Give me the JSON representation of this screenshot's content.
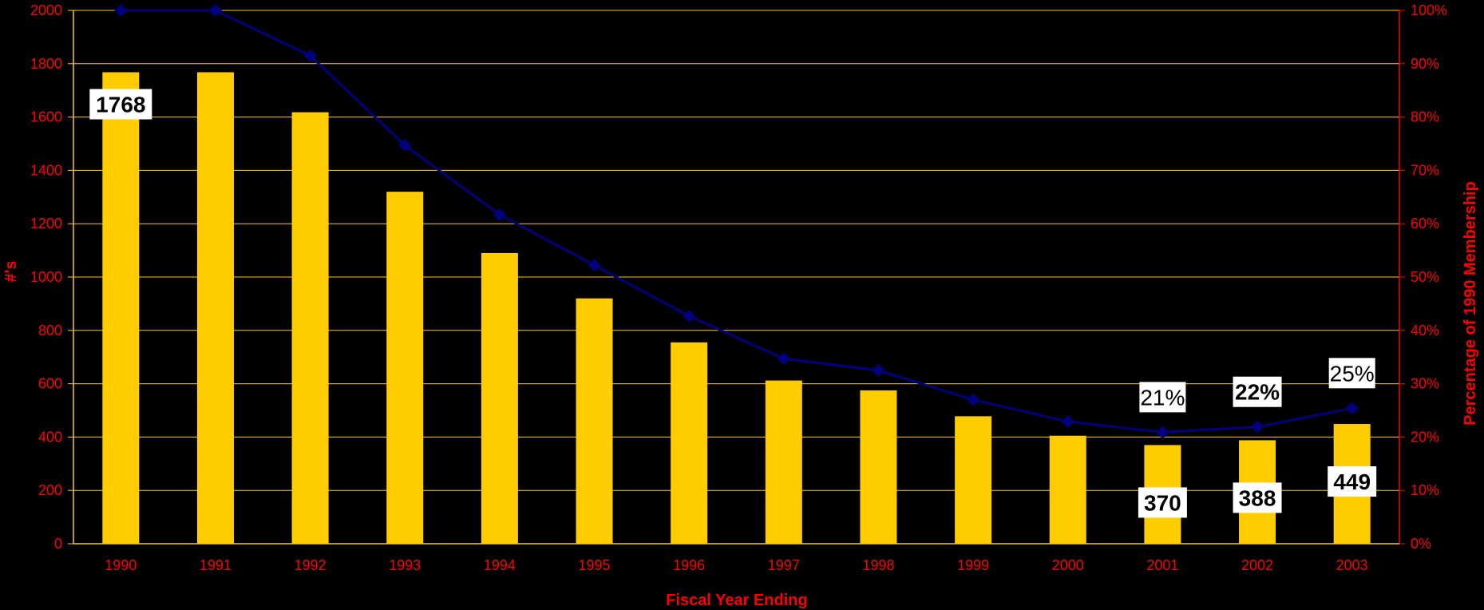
{
  "chart_data": {
    "type": "bar",
    "categories": [
      "1990",
      "1991",
      "1992",
      "1993",
      "1994",
      "1995",
      "1996",
      "1997",
      "1998",
      "1999",
      "2000",
      "2001",
      "2002",
      "2003"
    ],
    "series": [
      {
        "type": "bar",
        "axis": "left",
        "values": [
          1768,
          1768,
          1618,
          1320,
          1090,
          920,
          755,
          612,
          575,
          478,
          405,
          370,
          388,
          449
        ],
        "color": "#FFCC00"
      },
      {
        "type": "line",
        "axis": "right",
        "values": [
          100,
          100,
          91.5,
          74.7,
          61.7,
          52.2,
          42.7,
          34.7,
          32.5,
          27.0,
          22.9,
          20.9,
          21.9,
          25.4
        ],
        "color": "#000080",
        "marker": "diamond"
      }
    ],
    "bar_labels": [
      {
        "index": 0,
        "text": "1768",
        "bold": true
      },
      {
        "index": 11,
        "text": "370",
        "bold": true
      },
      {
        "index": 12,
        "text": "388",
        "bold": true
      },
      {
        "index": 13,
        "text": "449",
        "bold": true
      }
    ],
    "line_labels": [
      {
        "index": 11,
        "text": "21%",
        "bold": false
      },
      {
        "index": 12,
        "text": "22%",
        "bold": true
      },
      {
        "index": 13,
        "text": "25%",
        "bold": false
      }
    ],
    "xlabel": "Fiscal Year Ending",
    "ylabel": "#'s",
    "y2label": "Percentage of 1990 Membership",
    "ylim": [
      0,
      2000
    ],
    "y2lim": [
      0,
      100
    ],
    "yticks": [
      "0",
      "200",
      "400",
      "600",
      "800",
      "1000",
      "1200",
      "1400",
      "1600",
      "1800",
      "2000"
    ],
    "y2ticks": [
      "0%",
      "10%",
      "20%",
      "30%",
      "40%",
      "50%",
      "60%",
      "70%",
      "80%",
      "90%",
      "100%"
    ],
    "grid": true,
    "legend": "none",
    "colors": {
      "background": "#000000",
      "gridline": "#FFCC00",
      "text": "#FF0000",
      "label_box": "#FFFFFF"
    }
  }
}
